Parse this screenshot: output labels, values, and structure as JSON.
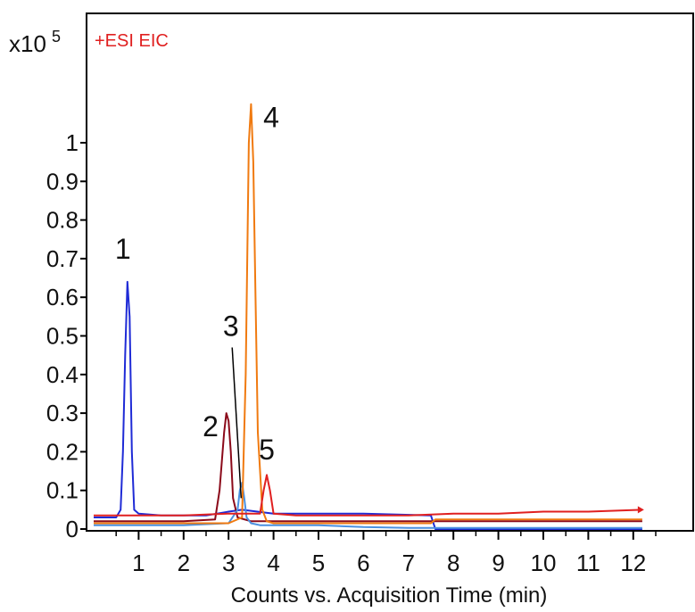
{
  "chart_data": {
    "type": "line",
    "title": "+ESI EIC",
    "xlabel": "Counts vs. Acquisition Time (min)",
    "ylabel": "",
    "y_multiplier": "x10",
    "y_exponent": "5",
    "xlim": [
      0,
      12.5
    ],
    "ylim": [
      0,
      1.1
    ],
    "x_ticks": [
      1,
      2,
      3,
      4,
      5,
      6,
      7,
      8,
      9,
      10,
      11,
      12
    ],
    "x_tick_labels": [
      "1",
      "2",
      "3",
      "4",
      "5",
      "6",
      "7",
      "8",
      "9",
      "10",
      "11",
      "12"
    ],
    "y_ticks": [
      0,
      0.1,
      0.2,
      0.3,
      0.4,
      0.5,
      0.6,
      0.7,
      0.8,
      0.9,
      1
    ],
    "y_tick_labels": [
      "0",
      "0.1",
      "0.2",
      "0.3",
      "0.4",
      "0.5",
      "0.6",
      "0.7",
      "0.8",
      "0.9",
      "1"
    ],
    "grid": false,
    "legend": "none",
    "series": [
      {
        "color": "#1f2bd6",
        "x": [
          0.0,
          0.5,
          0.6,
          0.65,
          0.7,
          0.75,
          0.8,
          0.85,
          0.9,
          1.0,
          1.5,
          2.5,
          3.0,
          3.3,
          4.0,
          5.0,
          6.0,
          7.5,
          7.6,
          12.2
        ],
        "y": [
          0.03,
          0.03,
          0.05,
          0.2,
          0.45,
          0.64,
          0.55,
          0.2,
          0.05,
          0.04,
          0.035,
          0.035,
          0.045,
          0.05,
          0.04,
          0.04,
          0.04,
          0.035,
          0.0,
          0.0
        ]
      },
      {
        "color": "#8b0a1a",
        "x": [
          0.0,
          1.0,
          2.0,
          2.7,
          2.8,
          2.9,
          2.95,
          3.0,
          3.05,
          3.1,
          3.2,
          3.5,
          4.0,
          5.0,
          12.2
        ],
        "y": [
          0.02,
          0.02,
          0.02,
          0.025,
          0.1,
          0.25,
          0.3,
          0.28,
          0.2,
          0.08,
          0.03,
          0.02,
          0.02,
          0.02,
          0.02
        ]
      },
      {
        "color": "#4a90e0",
        "x": [
          0.0,
          1.0,
          2.0,
          3.0,
          3.2,
          3.25,
          3.3,
          3.35,
          3.4,
          3.5,
          3.7,
          4.0,
          5.0,
          6.0,
          7.0,
          12.2
        ],
        "y": [
          0.01,
          0.01,
          0.01,
          0.015,
          0.05,
          0.1,
          0.12,
          0.08,
          0.03,
          0.015,
          0.01,
          0.01,
          0.01,
          0.005,
          0.003,
          0.003
        ]
      },
      {
        "color": "#f07a10",
        "x": [
          0.0,
          1.0,
          2.0,
          3.0,
          3.3,
          3.38,
          3.45,
          3.5,
          3.55,
          3.6,
          3.65,
          3.75,
          3.85,
          4.0,
          5.0,
          6.0,
          7.0,
          7.5,
          7.6,
          9.0,
          12.2
        ],
        "y": [
          0.015,
          0.015,
          0.015,
          0.015,
          0.03,
          0.4,
          1.0,
          1.1,
          0.95,
          0.6,
          0.25,
          0.05,
          0.02,
          0.015,
          0.015,
          0.015,
          0.015,
          0.015,
          0.025,
          0.025,
          0.025
        ]
      },
      {
        "color": "#e02020",
        "x": [
          0.0,
          1.0,
          2.0,
          3.0,
          3.7,
          3.78,
          3.85,
          3.92,
          4.0,
          4.5,
          5.0,
          6.0,
          7.0,
          8.0,
          9.0,
          10.0,
          11.0,
          12.2
        ],
        "y": [
          0.035,
          0.035,
          0.035,
          0.04,
          0.04,
          0.1,
          0.14,
          0.1,
          0.04,
          0.035,
          0.035,
          0.035,
          0.035,
          0.04,
          0.04,
          0.045,
          0.045,
          0.05
        ]
      }
    ],
    "annotations": [
      {
        "text": "1",
        "x": 0.65,
        "y": 0.7
      },
      {
        "text": "2",
        "x": 2.6,
        "y": 0.24
      },
      {
        "text": "3",
        "x": 3.05,
        "y": 0.5
      },
      {
        "text": "4",
        "x": 3.95,
        "y": 1.04
      },
      {
        "text": "5",
        "x": 3.85,
        "y": 0.18
      }
    ]
  }
}
